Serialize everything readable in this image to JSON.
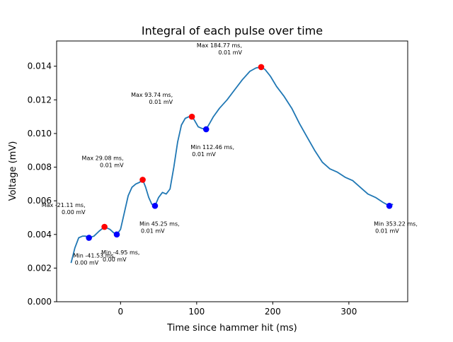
{
  "chart_data": {
    "type": "line",
    "title": "Integral of each pulse over time",
    "xlabel": "Time since hammer hit (ms)",
    "ylabel": "Voltage (mV)",
    "xlim": [
      -84.0,
      377.3
    ],
    "ylim": [
      0.0,
      0.0155
    ],
    "grid": false,
    "x_ticks": [
      {
        "value": 0,
        "label": "0"
      },
      {
        "value": 100,
        "label": "100"
      },
      {
        "value": 200,
        "label": "200"
      },
      {
        "value": 300,
        "label": "300"
      }
    ],
    "y_ticks": [
      {
        "value": 0.0,
        "label": "0.000"
      },
      {
        "value": 0.002,
        "label": "0.002"
      },
      {
        "value": 0.004,
        "label": "0.004"
      },
      {
        "value": 0.006,
        "label": "0.006"
      },
      {
        "value": 0.008,
        "label": "0.008"
      },
      {
        "value": 0.01,
        "label": "0.010"
      },
      {
        "value": 0.012,
        "label": "0.012"
      },
      {
        "value": 0.014,
        "label": "0.014"
      }
    ],
    "series": [
      {
        "color": "#1f77b4",
        "x": [
          -65,
          -60,
          -55,
          -50,
          -46,
          -41.5,
          -35,
          -28,
          -21.11,
          -14,
          -9,
          -4.95,
          0,
          5,
          10,
          15,
          20,
          25,
          29.08,
          33,
          37,
          41,
          45.25,
          50,
          55,
          60,
          65,
          70,
          75,
          80,
          85,
          90,
          93.74,
          97,
          102,
          107,
          112.46,
          117,
          122,
          130,
          140,
          150,
          160,
          170,
          178,
          184.77,
          190,
          197,
          205,
          215,
          225,
          235,
          245,
          255,
          265,
          275,
          285,
          295,
          305,
          315,
          325,
          335,
          345,
          353.22,
          358
        ],
        "y": [
          0.0023,
          0.0032,
          0.0038,
          0.0039,
          0.0039,
          0.0038,
          0.0039,
          0.0042,
          0.00445,
          0.0043,
          0.0041,
          0.004,
          0.0043,
          0.0053,
          0.0063,
          0.0068,
          0.007,
          0.0071,
          0.00725,
          0.0068,
          0.0062,
          0.0058,
          0.0057,
          0.0062,
          0.0065,
          0.0064,
          0.0067,
          0.008,
          0.0095,
          0.0105,
          0.0109,
          0.011,
          0.011,
          0.0108,
          0.0104,
          0.0103,
          0.01025,
          0.0106,
          0.011,
          0.0115,
          0.012,
          0.0126,
          0.0132,
          0.0137,
          0.0139,
          0.01395,
          0.0138,
          0.0134,
          0.0128,
          0.0122,
          0.0115,
          0.0106,
          0.0098,
          0.009,
          0.0083,
          0.0079,
          0.0077,
          0.0074,
          0.0072,
          0.0068,
          0.0064,
          0.0062,
          0.0059,
          0.0057,
          0.0058
        ]
      }
    ],
    "extrema": [
      {
        "kind": "max",
        "x": -21.11,
        "y": 0.00445,
        "color": "#ff0000",
        "label": "Max -21.11 ms,\n0.00 mV",
        "label_pos": "upper-left"
      },
      {
        "kind": "max",
        "x": 29.08,
        "y": 0.00725,
        "color": "#ff0000",
        "label": "Max 29.08 ms,\n0.01 mV",
        "label_pos": "upper-left"
      },
      {
        "kind": "max",
        "x": 93.74,
        "y": 0.011,
        "color": "#ff0000",
        "label": "Max 93.74 ms,\n0.01 mV",
        "label_pos": "upper-left"
      },
      {
        "kind": "max",
        "x": 184.77,
        "y": 0.01395,
        "color": "#ff0000",
        "label": "Max 184.77 ms,\n0.01 mV",
        "label_pos": "upper-left"
      },
      {
        "kind": "min",
        "x": -41.53,
        "y": 0.0038,
        "color": "#0000ff",
        "label": "Min -41.53 ms,\n0.00 mV",
        "label_pos": "lower-right"
      },
      {
        "kind": "min",
        "x": -4.95,
        "y": 0.004,
        "color": "#0000ff",
        "label": "Min -4.95 ms,\n0.00 mV",
        "label_pos": "lower-right"
      },
      {
        "kind": "min",
        "x": 45.25,
        "y": 0.0057,
        "color": "#0000ff",
        "label": "Min 45.25 ms,\n0.01 mV",
        "label_pos": "lower-right"
      },
      {
        "kind": "min",
        "x": 112.46,
        "y": 0.01025,
        "color": "#0000ff",
        "label": "Min 112.46 ms,\n0.01 mV",
        "label_pos": "lower-right"
      },
      {
        "kind": "min",
        "x": 353.22,
        "y": 0.0057,
        "color": "#0000ff",
        "label": "Min 353.22 ms,\n0.01 mV",
        "label_pos": "lower-right"
      }
    ]
  }
}
